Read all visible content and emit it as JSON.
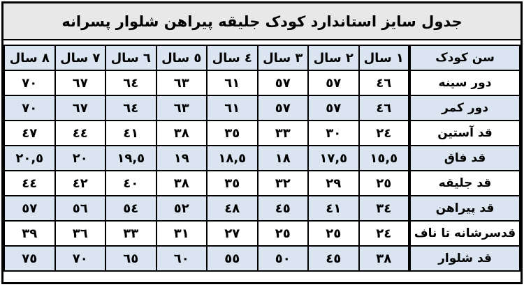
{
  "title": "جدول سایز استاندارد کودک جلیقه پیراهن شلوار پسرانه",
  "colors": {
    "title_background": "#e8e8e8",
    "header_row_background": "#dbe5f1",
    "alternate_row_background": "#dbe5f1",
    "plain_row_background": "#ffffff",
    "border": "#000000",
    "text": "#000000"
  },
  "table": {
    "header": [
      "سن کودک",
      "١ سال",
      "٢ سال",
      "٣ سال",
      "٤ سال",
      "٥ سال",
      "٦ سال",
      "٧ سال",
      "٨ سال"
    ],
    "rows": [
      {
        "label": "دور سینه",
        "values": [
          "٤٦",
          "٥٧",
          "٥٧",
          "٦١",
          "٦٣",
          "٦٤",
          "٦٧",
          "٧٠"
        ]
      },
      {
        "label": "دور کمر",
        "values": [
          "٤٦",
          "٥٧",
          "٥٧",
          "٦١",
          "٦٣",
          "٦٤",
          "٦٧",
          "٧٠"
        ]
      },
      {
        "label": "قد آستین",
        "values": [
          "٢٤",
          "٣٠",
          "٣٣",
          "٣٥",
          "٣٨",
          "٤١",
          "٤٤",
          "٤٧"
        ]
      },
      {
        "label": "قد فاق",
        "values": [
          "١٥,٥",
          "١٧,٥",
          "١٨",
          "١٨,٥",
          "١٩",
          "١٩,٥",
          "٢٠",
          "٢٠,٥"
        ]
      },
      {
        "label": "قد جلیقه",
        "values": [
          "٢٥",
          "٢٩",
          "٣٢",
          "٣٥",
          "٣٨",
          "٤٠",
          "٤٢",
          "٤٤"
        ]
      },
      {
        "label": "قد پیراهن",
        "values": [
          "٣٤",
          "٤١",
          "٤٥",
          "٤٨",
          "٥٢",
          "٥٤",
          "٥٦",
          "٥٧"
        ]
      },
      {
        "label": "قدسرشانه تا ناف",
        "values": [
          "٢٤",
          "٢٥",
          "٢٥",
          "٢٧",
          "٣١",
          "٣٣",
          "٣٦",
          "٣٩"
        ]
      },
      {
        "label": "قد شلوار",
        "values": [
          "٣٨",
          "٤٥",
          "٥٠",
          "٥٥",
          "٦٠",
          "٦٥",
          "٧٠",
          "٧٥"
        ]
      }
    ]
  }
}
